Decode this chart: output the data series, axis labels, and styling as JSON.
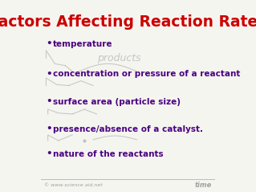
{
  "title": "Factors Affecting Reaction Rates",
  "title_color": "#cc0000",
  "title_fontsize": 13.5,
  "title_fontstyle": "bold",
  "bg_color": "#f5f5f0",
  "bullet_color": "#4b0082",
  "bullet_fontsize": 7.5,
  "bullet_items": [
    "temperature",
    "concentration or pressure of a reactant",
    "surface area (particle size)",
    "presence/absence of a catalyst.",
    "nature of the reactants"
  ],
  "watermark_text": "products",
  "watermark_color": "#b0b0b0",
  "footer_left": "© www.science aid.net",
  "footer_right": "time",
  "footer_color": "#a0a0a0"
}
